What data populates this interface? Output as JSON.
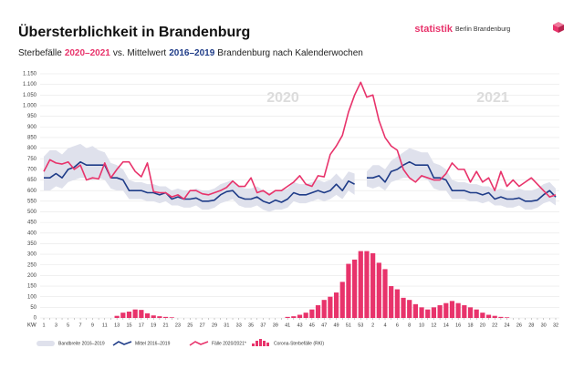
{
  "chart_data": {
    "type": "line",
    "title": "Übersterblichkeit in Brandenburg",
    "subtitle": [
      {
        "text": "Sterbefälle",
        "color": "#222222"
      },
      {
        "text": "2020–2021",
        "color": "#e8336b"
      },
      {
        "text": "vs. Mittelwert",
        "color": "#222222"
      },
      {
        "text": "2016–2019",
        "color": "#1f3c88"
      },
      {
        "text": "Brandenburg nach Kalenderwochen",
        "color": "#222222"
      }
    ],
    "brand": "statistik",
    "brand_sub": "Berlin Brandenburg",
    "x_label": "KW",
    "year_labels": [
      "2020",
      "2021"
    ],
    "categories": [
      "1",
      null,
      "3",
      null,
      "5",
      null,
      "7",
      null,
      "9",
      null,
      "11",
      null,
      "13",
      null,
      "15",
      null,
      "17",
      null,
      "19",
      null,
      "21",
      null,
      "23",
      null,
      "25",
      null,
      "27",
      null,
      "29",
      null,
      "31",
      null,
      "33",
      null,
      "35",
      null,
      "37",
      null,
      "39",
      null,
      "41",
      null,
      "43",
      null,
      "45",
      null,
      "47",
      null,
      "49",
      null,
      "51",
      null,
      "53",
      null,
      "2",
      null,
      "4",
      null,
      "6",
      null,
      "8",
      null,
      "10",
      null,
      "12",
      null,
      "14",
      null,
      "16",
      null,
      "18",
      null,
      "20",
      null,
      "22",
      null,
      "24",
      null,
      "26",
      null,
      "28",
      null,
      "30",
      null,
      "32"
    ],
    "ylim": [
      0,
      1150
    ],
    "yticks": [
      0,
      50,
      100,
      150,
      200,
      250,
      300,
      350,
      400,
      450,
      500,
      550,
      600,
      650,
      700,
      750,
      800,
      850,
      900,
      950,
      {
        "value": 1000,
        "label": "1.000"
      },
      {
        "value": 1050,
        "label": "1.050"
      },
      {
        "value": 1100,
        "label": "1.100"
      },
      {
        "value": 1150,
        "label": "1.150"
      }
    ],
    "grid": true,
    "series": [
      {
        "name": "Bandbreite 2016–2019",
        "type": "band",
        "color": "#dfe1ec",
        "lower": [
          600,
          600,
          620,
          610,
          640,
          650,
          660,
          660,
          650,
          660,
          650,
          610,
          600,
          600,
          560,
          560,
          560,
          550,
          550,
          540,
          550,
          530,
          530,
          520,
          520,
          530,
          510,
          510,
          520,
          540,
          550,
          560,
          530,
          520,
          520,
          530,
          510,
          500,
          510,
          510,
          520,
          550,
          540,
          540,
          550,
          560,
          550,
          560,
          580,
          560,
          600,
          580,
          null,
          620,
          610,
          620,
          600,
          640,
          650,
          660,
          660,
          650,
          660,
          650,
          610,
          600,
          600,
          560,
          560,
          560,
          550,
          550,
          540,
          550,
          530,
          530,
          520,
          520,
          530,
          510,
          510,
          520,
          540,
          550,
          530
        ],
        "upper": [
          760,
          790,
          790,
          770,
          800,
          810,
          820,
          800,
          810,
          790,
          780,
          730,
          720,
          700,
          650,
          640,
          640,
          630,
          630,
          620,
          620,
          600,
          610,
          600,
          600,
          610,
          600,
          600,
          610,
          630,
          640,
          650,
          620,
          610,
          610,
          620,
          600,
          590,
          600,
          600,
          610,
          640,
          630,
          630,
          640,
          650,
          640,
          650,
          680,
          650,
          690,
          680,
          null,
          690,
          720,
          720,
          700,
          740,
          760,
          780,
          800,
          790,
          780,
          780,
          730,
          720,
          700,
          650,
          640,
          640,
          630,
          630,
          620,
          620,
          600,
          610,
          600,
          600,
          610,
          600,
          600,
          610,
          630,
          640,
          610
        ]
      },
      {
        "name": "Mittel 2016–2019",
        "type": "line",
        "color": "#1f3c88",
        "values": [
          660,
          660,
          680,
          660,
          700,
          710,
          735,
          720,
          720,
          720,
          720,
          660,
          660,
          650,
          600,
          600,
          600,
          590,
          590,
          580,
          590,
          560,
          570,
          560,
          560,
          565,
          550,
          550,
          555,
          580,
          595,
          600,
          570,
          560,
          560,
          570,
          550,
          540,
          555,
          545,
          560,
          590,
          580,
          580,
          590,
          600,
          590,
          600,
          630,
          600,
          645,
          630,
          null,
          660,
          660,
          670,
          640,
          690,
          700,
          720,
          735,
          720,
          720,
          720,
          660,
          660,
          650,
          600,
          600,
          600,
          590,
          590,
          580,
          590,
          560,
          570,
          560,
          560,
          565,
          550,
          550,
          555,
          580,
          600,
          570
        ]
      },
      {
        "name": "Fälle 2020/2021*",
        "type": "line",
        "color": "#e8336b",
        "values": [
          690,
          745,
          730,
          725,
          735,
          700,
          720,
          650,
          660,
          655,
          730,
          660,
          700,
          735,
          735,
          690,
          665,
          730,
          595,
          590,
          590,
          570,
          580,
          560,
          600,
          600,
          585,
          580,
          590,
          600,
          615,
          645,
          620,
          620,
          660,
          590,
          600,
          580,
          600,
          600,
          620,
          640,
          670,
          630,
          620,
          670,
          665,
          770,
          810,
          860,
          970,
          1050,
          1110,
          1040,
          1050,
          930,
          850,
          810,
          790,
          700,
          660,
          640,
          670,
          660,
          650,
          650,
          680,
          730,
          700,
          700,
          640,
          690,
          640,
          660,
          600,
          690,
          620,
          650,
          620,
          640,
          660,
          630,
          600,
          570,
          580
        ]
      },
      {
        "name": "Corona-Sterbefälle (RKI)",
        "type": "bar",
        "color": "#e8336b",
        "values": [
          0,
          0,
          0,
          0,
          0,
          0,
          0,
          0,
          0,
          0,
          0,
          0,
          10,
          25,
          30,
          40,
          38,
          22,
          12,
          8,
          5,
          3,
          0,
          0,
          0,
          0,
          0,
          0,
          0,
          0,
          0,
          0,
          0,
          0,
          0,
          0,
          0,
          0,
          0,
          0,
          5,
          8,
          15,
          25,
          40,
          60,
          85,
          100,
          120,
          170,
          255,
          275,
          315,
          315,
          305,
          260,
          230,
          150,
          135,
          95,
          85,
          65,
          50,
          40,
          50,
          60,
          70,
          80,
          70,
          60,
          50,
          40,
          25,
          15,
          10,
          5,
          3,
          0,
          0,
          0,
          0,
          0,
          0,
          0,
          0
        ]
      }
    ]
  }
}
